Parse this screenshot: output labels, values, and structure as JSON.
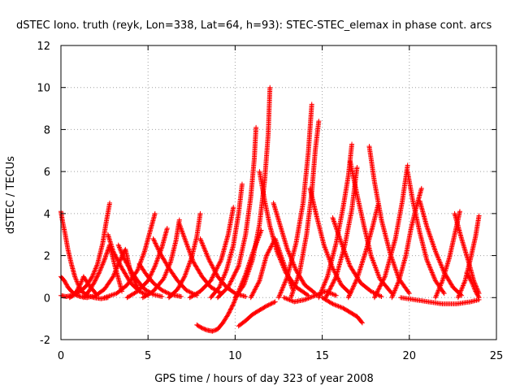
{
  "chart_data": {
    "type": "scatter",
    "title": "dSTEC Iono. truth (reyk, Lon=338, Lat=64, h=93): STEC-STEC_elemax in phase cont. arcs",
    "xlabel": "GPS time / hours of day 323 of year 2008",
    "ylabel": "dSTEC  / TECUs",
    "xlim": [
      0,
      25
    ],
    "ylim": [
      -2,
      12
    ],
    "xticks": [
      0,
      5,
      10,
      15,
      20,
      25
    ],
    "yticks": [
      -2,
      0,
      2,
      4,
      6,
      8,
      10,
      12
    ],
    "grid": true,
    "marker": "+",
    "color": "#ff0000",
    "series": [
      {
        "x": [
          0.0,
          0.3,
          0.6,
          0.9,
          1.2,
          1.5,
          1.8,
          2.1,
          2.4,
          2.6,
          2.8
        ],
        "y": [
          0.1,
          0.05,
          0.1,
          0.2,
          0.35,
          0.6,
          1.0,
          1.6,
          2.6,
          3.6,
          4.5
        ]
      },
      {
        "x": [
          0.0,
          0.1,
          0.25,
          0.4,
          0.6,
          0.8,
          1.0,
          1.2,
          1.5,
          1.9,
          2.3,
          2.7
        ],
        "y": [
          4.1,
          3.6,
          3.0,
          2.3,
          1.6,
          1.0,
          0.6,
          0.3,
          0.1,
          0.0,
          -0.05,
          0.0
        ]
      },
      {
        "x": [
          0.0,
          0.2,
          0.4,
          0.6,
          0.8,
          1.1,
          1.5
        ],
        "y": [
          1.0,
          0.8,
          0.5,
          0.3,
          0.15,
          0.05,
          0.0
        ]
      },
      {
        "x": [
          0.5,
          0.7,
          0.9,
          1.1,
          1.3,
          1.6,
          2.0
        ],
        "y": [
          0.0,
          0.1,
          0.3,
          0.6,
          1.0,
          0.6,
          0.2
        ]
      },
      {
        "x": [
          1.3,
          1.6,
          1.9,
          2.2,
          2.5,
          2.8,
          3.1,
          3.5
        ],
        "y": [
          0.0,
          0.3,
          0.7,
          1.2,
          1.8,
          2.5,
          1.5,
          0.3
        ]
      },
      {
        "x": [
          1.5,
          2.0,
          2.5,
          3.0,
          3.3,
          3.7,
          4.0,
          4.5
        ],
        "y": [
          0.0,
          0.1,
          0.4,
          1.0,
          1.6,
          2.3,
          1.2,
          0.3
        ]
      },
      {
        "x": [
          2.7,
          3.0,
          3.5,
          4.0,
          4.5,
          5.0
        ],
        "y": [
          3.0,
          2.2,
          1.4,
          0.7,
          0.3,
          0.1
        ]
      },
      {
        "x": [
          3.3,
          3.6,
          4.0,
          4.4,
          4.8,
          5.3,
          5.8
        ],
        "y": [
          2.5,
          1.9,
          1.3,
          0.8,
          0.4,
          0.15,
          0.05
        ]
      },
      {
        "x": [
          2.5,
          3.2,
          3.8,
          4.4,
          4.8,
          5.1,
          5.4
        ],
        "y": [
          0.0,
          0.2,
          0.6,
          1.3,
          2.2,
          3.1,
          4.0
        ]
      },
      {
        "x": [
          4.5,
          4.9,
          5.3,
          5.8,
          6.3,
          6.9
        ],
        "y": [
          1.6,
          1.1,
          0.7,
          0.35,
          0.15,
          0.05
        ]
      },
      {
        "x": [
          3.8,
          4.4,
          5.0,
          5.4,
          5.8,
          6.1
        ],
        "y": [
          0.0,
          0.3,
          0.8,
          1.5,
          2.4,
          3.3
        ]
      },
      {
        "x": [
          5.3,
          5.7,
          6.2,
          6.7,
          7.2,
          7.8
        ],
        "y": [
          2.8,
          2.1,
          1.4,
          0.8,
          0.35,
          0.1
        ]
      },
      {
        "x": [
          4.7,
          5.3,
          5.9,
          6.3,
          6.6,
          6.8
        ],
        "y": [
          0.0,
          0.3,
          0.9,
          1.7,
          2.7,
          3.7
        ]
      },
      {
        "x": [
          6.8,
          7.2,
          7.6,
          8.1,
          8.6,
          9.2
        ],
        "y": [
          3.5,
          2.6,
          1.7,
          1.0,
          0.5,
          0.2
        ]
      },
      {
        "x": [
          6.2,
          6.7,
          7.1,
          7.5,
          7.8,
          8.0
        ],
        "y": [
          0.0,
          0.4,
          1.0,
          1.9,
          2.9,
          4.0
        ]
      },
      {
        "x": [
          7.4,
          8.0,
          8.6,
          9.2,
          9.6,
          9.9
        ],
        "y": [
          0.0,
          0.3,
          0.8,
          1.8,
          3.0,
          4.3
        ]
      },
      {
        "x": [
          8.0,
          8.5,
          9.0,
          9.5,
          10.0,
          10.6
        ],
        "y": [
          2.8,
          1.8,
          1.0,
          0.5,
          0.2,
          0.05
        ]
      },
      {
        "x": [
          8.6,
          9.1,
          9.5,
          9.9,
          10.2,
          10.4
        ],
        "y": [
          0.0,
          0.5,
          1.3,
          2.5,
          4.0,
          5.4
        ]
      },
      {
        "x": [
          7.8,
          8.1,
          8.4,
          8.7,
          9.0,
          9.3,
          9.6,
          9.9,
          10.2,
          10.6,
          11.0,
          11.5
        ],
        "y": [
          -1.3,
          -1.45,
          -1.55,
          -1.6,
          -1.5,
          -1.2,
          -0.8,
          -0.3,
          0.3,
          1.1,
          2.1,
          3.2
        ]
      },
      {
        "x": [
          9.0,
          9.6,
          10.2,
          10.6,
          10.9,
          11.1,
          11.2
        ],
        "y": [
          0.0,
          0.5,
          1.5,
          3.0,
          4.8,
          6.6,
          8.1
        ]
      },
      {
        "x": [
          10.0,
          10.5,
          11.0,
          11.4,
          11.7,
          11.9,
          12.0
        ],
        "y": [
          0.0,
          0.6,
          1.8,
          3.5,
          5.6,
          7.8,
          10.0
        ]
      },
      {
        "x": [
          10.2,
          10.6,
          11.0,
          11.4,
          11.8,
          12.3
        ],
        "y": [
          -1.35,
          -1.1,
          -0.8,
          -0.6,
          -0.4,
          -0.2
        ]
      },
      {
        "x": [
          11.4,
          11.7,
          12.0,
          12.4,
          12.9,
          13.5,
          14.2
        ],
        "y": [
          6.0,
          4.6,
          3.4,
          2.2,
          1.2,
          0.5,
          0.1
        ]
      },
      {
        "x": [
          10.9,
          11.4,
          11.8,
          12.3,
          12.8,
          13.3
        ],
        "y": [
          0.0,
          0.8,
          2.0,
          2.8,
          1.6,
          0.4
        ]
      },
      {
        "x": [
          12.2,
          12.6,
          13.0,
          13.5,
          14.0,
          14.6
        ],
        "y": [
          4.5,
          3.4,
          2.3,
          1.3,
          0.6,
          0.2
        ]
      },
      {
        "x": [
          12.5,
          13.0,
          13.5,
          13.9,
          14.2,
          14.4
        ],
        "y": [
          0.0,
          1.0,
          2.6,
          4.5,
          6.9,
          9.2
        ]
      },
      {
        "x": [
          13.2,
          13.7,
          14.1,
          14.4,
          14.6,
          14.8
        ],
        "y": [
          0.0,
          1.2,
          3.0,
          5.0,
          7.0,
          8.4
        ]
      },
      {
        "x": [
          12.8,
          13.4,
          14.0,
          14.6,
          15.2,
          15.8
        ],
        "y": [
          0.0,
          -0.2,
          -0.1,
          0.1,
          0.3,
          0.1
        ]
      },
      {
        "x": [
          14.3,
          14.7,
          15.1,
          15.6,
          16.1,
          16.6
        ],
        "y": [
          5.2,
          3.8,
          2.5,
          1.4,
          0.6,
          0.2
        ]
      },
      {
        "x": [
          14.8,
          15.3,
          15.8,
          16.2,
          16.5,
          16.7
        ],
        "y": [
          0.0,
          1.0,
          2.6,
          4.3,
          5.8,
          7.3
        ]
      },
      {
        "x": [
          15.2,
          15.8,
          16.3,
          16.7,
          17.0
        ],
        "y": [
          0.0,
          1.0,
          2.5,
          4.2,
          6.2
        ]
      },
      {
        "x": [
          15.0,
          15.6,
          16.2,
          16.6,
          17.0,
          17.3
        ],
        "y": [
          0.0,
          -0.3,
          -0.5,
          -0.7,
          -0.9,
          -1.2
        ]
      },
      {
        "x": [
          15.6,
          16.1,
          16.6,
          17.2,
          17.8,
          18.4
        ],
        "y": [
          3.8,
          2.6,
          1.5,
          0.7,
          0.3,
          0.05
        ]
      },
      {
        "x": [
          16.6,
          17.0,
          17.4,
          17.8,
          18.3,
          19.0
        ],
        "y": [
          6.5,
          4.9,
          3.4,
          2.0,
          0.9,
          0.2
        ]
      },
      {
        "x": [
          17.7,
          18.0,
          18.4,
          18.9,
          19.4,
          20.0
        ],
        "y": [
          7.2,
          5.5,
          3.7,
          2.1,
          0.9,
          0.2
        ]
      },
      {
        "x": [
          16.5,
          17.0,
          17.5,
          17.9,
          18.2
        ],
        "y": [
          0.0,
          0.9,
          2.2,
          3.4,
          4.4
        ]
      },
      {
        "x": [
          18.0,
          18.6,
          19.2,
          19.6,
          19.9
        ],
        "y": [
          0.0,
          1.0,
          2.8,
          4.6,
          6.3
        ]
      },
      {
        "x": [
          19.9,
          20.2,
          20.6,
          21.0,
          21.5,
          22.0
        ],
        "y": [
          6.0,
          4.6,
          3.1,
          1.8,
          0.8,
          0.2
        ]
      },
      {
        "x": [
          19.0,
          19.4,
          19.8,
          20.1,
          20.4,
          20.7
        ],
        "y": [
          0.0,
          0.8,
          2.0,
          3.3,
          4.3,
          5.2
        ]
      },
      {
        "x": [
          20.6,
          21.0,
          21.5,
          22.0,
          22.5,
          23.0
        ],
        "y": [
          4.6,
          3.4,
          2.2,
          1.2,
          0.5,
          0.1
        ]
      },
      {
        "x": [
          21.5,
          21.9,
          22.3,
          22.6,
          22.9
        ],
        "y": [
          0.0,
          0.8,
          1.9,
          3.0,
          4.1
        ]
      },
      {
        "x": [
          22.6,
          23.0,
          23.4,
          23.7,
          24.0
        ],
        "y": [
          4.0,
          2.8,
          1.7,
          0.8,
          0.2
        ]
      },
      {
        "x": [
          22.8,
          23.2,
          23.5,
          23.8,
          24.0
        ],
        "y": [
          0.0,
          0.8,
          1.8,
          2.9,
          3.9
        ]
      },
      {
        "x": [
          19.5,
          20.3,
          21.1,
          21.9,
          22.7,
          23.5,
          24.0
        ],
        "y": [
          0.0,
          -0.1,
          -0.2,
          -0.3,
          -0.3,
          -0.2,
          -0.1
        ]
      },
      {
        "x": [
          23.3,
          23.6,
          23.8,
          24.0
        ],
        "y": [
          1.2,
          0.7,
          0.3,
          0.0
        ]
      }
    ]
  }
}
